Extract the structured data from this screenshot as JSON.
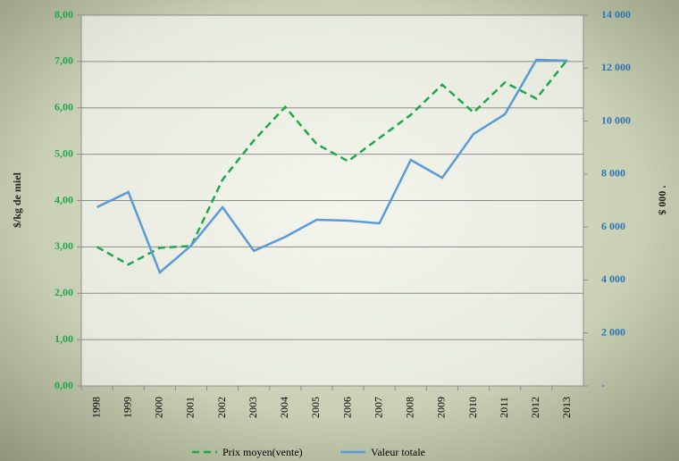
{
  "chart_data": {
    "type": "line",
    "categories": [
      "1998",
      "1999",
      "2000",
      "2001",
      "2002",
      "2003",
      "2004",
      "2005",
      "2006",
      "2007",
      "2008",
      "2009",
      "2010",
      "2011",
      "2012",
      "2013"
    ],
    "ylabel": "$/kg  de miel",
    "y2label": "' 000 $",
    "ylim": [
      0,
      8
    ],
    "yticks": [
      {
        "value": 0,
        "label": "0,00"
      },
      {
        "value": 1,
        "label": "1,00"
      },
      {
        "value": 2,
        "label": "2,00"
      },
      {
        "value": 3,
        "label": "3,00"
      },
      {
        "value": 4,
        "label": "4,00"
      },
      {
        "value": 5,
        "label": "5,00"
      },
      {
        "value": 6,
        "label": "6,00"
      },
      {
        "value": 7,
        "label": "7,00"
      },
      {
        "value": 8,
        "label": "8,00"
      }
    ],
    "y2lim": [
      0,
      14000
    ],
    "y2ticks": [
      {
        "value": 0,
        "label": "-"
      },
      {
        "value": 2000,
        "label": "2 000"
      },
      {
        "value": 4000,
        "label": "4 000"
      },
      {
        "value": 6000,
        "label": "6 000"
      },
      {
        "value": 8000,
        "label": "8 000"
      },
      {
        "value": 10000,
        "label": "10 000"
      },
      {
        "value": 12000,
        "label": "12 000"
      },
      {
        "value": 14000,
        "label": "14 000"
      }
    ],
    "grid": true,
    "legend": "bottom",
    "series": [
      {
        "name": "Prix moyen(vente)",
        "color": "#1fa84a",
        "dashed": true,
        "values": [
          3.0,
          2.62,
          2.98,
          3.02,
          4.45,
          5.3,
          6.02,
          5.22,
          4.85,
          5.35,
          5.85,
          6.5,
          5.9,
          6.55,
          6.2,
          7.05
        ]
      },
      {
        "name": "Valeur totale",
        "color": "#5b9bd5",
        "axis": "y2",
        "values": [
          6750,
          7320,
          4285,
          5300,
          6750,
          5100,
          5630,
          6275,
          6240,
          6140,
          8535,
          7860,
          9515,
          10260,
          12315,
          12280
        ]
      }
    ]
  }
}
